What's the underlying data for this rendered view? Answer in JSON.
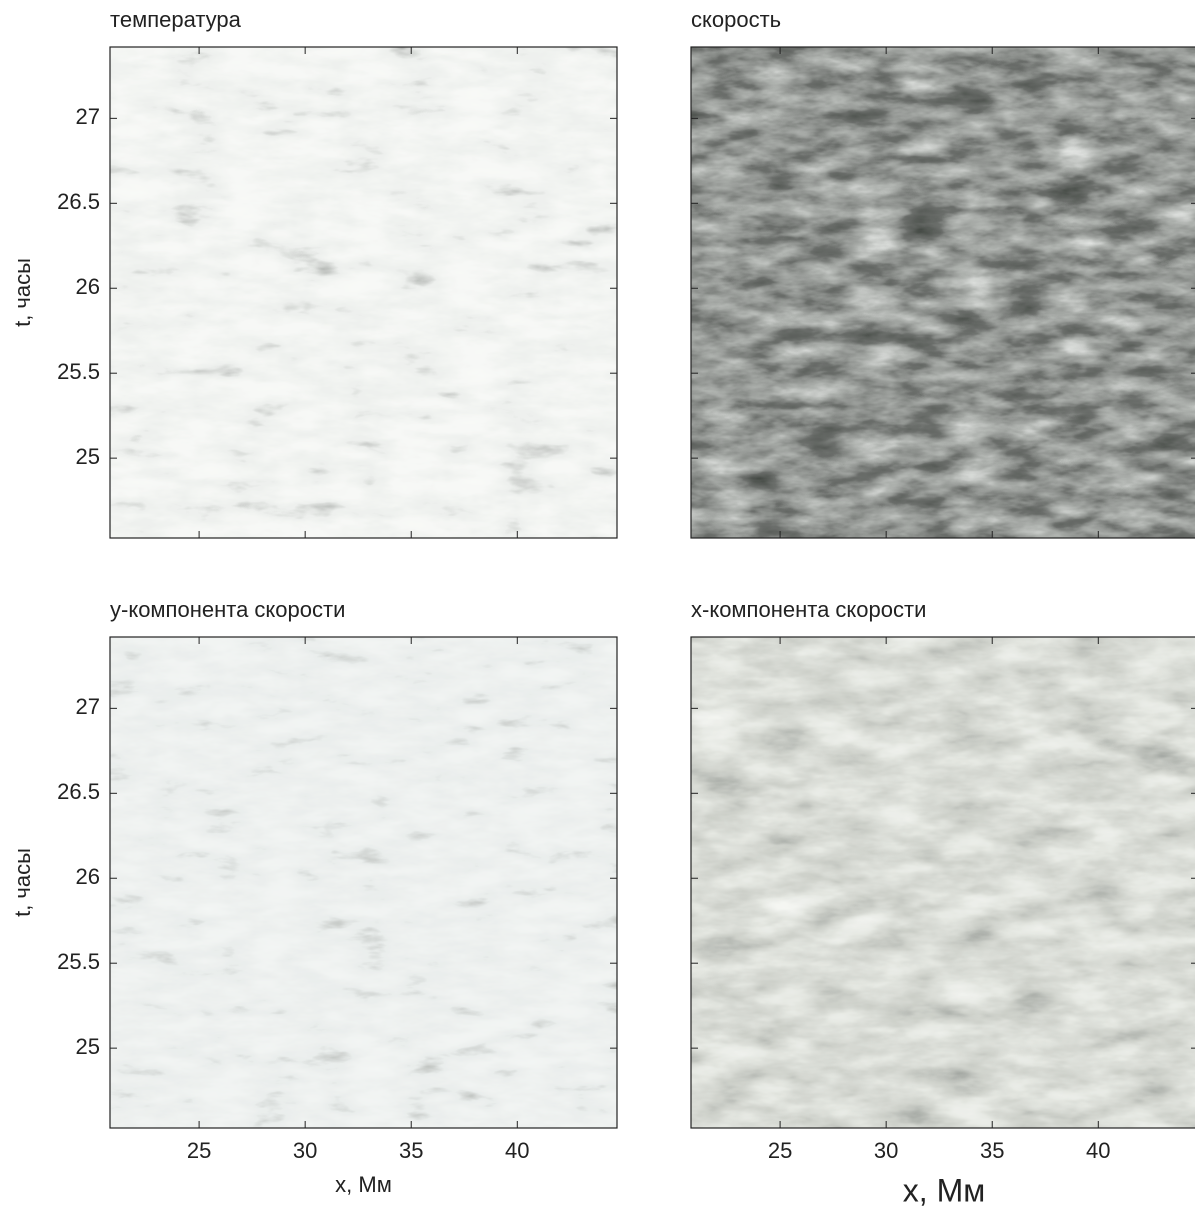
{
  "chart_data": [
    {
      "type": "heatmap",
      "title": "температура",
      "ylabel": "t, часы",
      "xlim": [
        20.8,
        44.7
      ],
      "ylim": [
        24.53,
        27.42
      ],
      "yticks": [
        25,
        25.5,
        26,
        26.5,
        27
      ]
    },
    {
      "type": "heatmap",
      "title": "скорость",
      "xlim": [
        20.8,
        44.7
      ],
      "ylim": [
        24.53,
        27.42
      ]
    },
    {
      "type": "heatmap",
      "title": "y-компонента скорости",
      "ylabel": "t, часы",
      "xlabel": "x, Мм",
      "xlim": [
        20.8,
        44.7
      ],
      "ylim": [
        24.53,
        27.42
      ],
      "xticks": [
        25,
        30,
        35,
        40
      ],
      "yticks": [
        25,
        25.5,
        26,
        26.5,
        27
      ]
    },
    {
      "type": "heatmap",
      "title": "x-компонента скорости",
      "xlabel": "x, Мм",
      "xlim": [
        20.8,
        44.7
      ],
      "ylim": [
        24.53,
        27.42
      ],
      "xticks": [
        25,
        30,
        35,
        40
      ]
    }
  ]
}
